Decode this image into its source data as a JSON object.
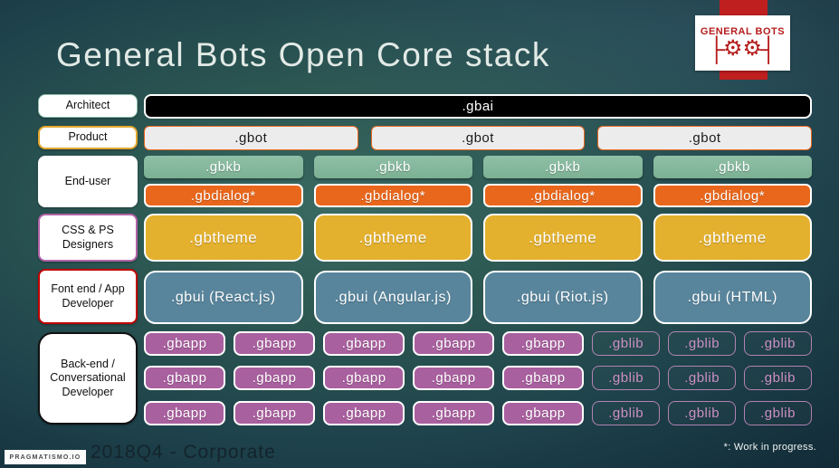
{
  "slide": {
    "title": "General Bots Open Core stack",
    "footnote": "*: Work in progress.",
    "footer": {
      "brand": "PRAGMATISMO.IO",
      "caption": "2018Q4 - Corporate"
    },
    "logo": {
      "text": "GENERAL BOTS",
      "bar_left": "├",
      "gear_left": "⚙",
      "gear_right": "⚙",
      "bar_right": "┤"
    }
  },
  "labels": {
    "architect": "Architect",
    "product": "Product",
    "end_user": "End-user",
    "css_ps": "CSS & PS Designers",
    "front_end": "Font end / App Developer",
    "back_end": "Back-end / Conversational Developer"
  },
  "stack": {
    "gbai_row": [
      ".gbai"
    ],
    "gbot_row": [
      ".gbot",
      ".gbot",
      ".gbot"
    ],
    "gbkb_row": [
      ".gbkb",
      ".gbkb",
      ".gbkb",
      ".gbkb"
    ],
    "gbdialog_row": [
      ".gbdialog*",
      ".gbdialog*",
      ".gbdialog*",
      ".gbdialog*"
    ],
    "gbtheme_row": [
      ".gbtheme",
      ".gbtheme",
      ".gbtheme",
      ".gbtheme"
    ],
    "gbui_row": [
      ".gbui (React.js)",
      ".gbui (Angular.js)",
      ".gbui (Riot.js)",
      ".gbui (HTML)"
    ],
    "backend_rows": [
      {
        "cells": [
          ".gbapp",
          ".gbapp",
          ".gbapp",
          ".gbapp",
          ".gbapp",
          ".gblib",
          ".gblib",
          ".gblib"
        ]
      },
      {
        "cells": [
          ".gbapp",
          ".gbapp",
          ".gbapp",
          ".gbapp",
          ".gbapp",
          ".gblib",
          ".gblib",
          ".gblib"
        ]
      },
      {
        "cells": [
          ".gbapp",
          ".gbapp",
          ".gbapp",
          ".gbapp",
          ".gbapp",
          ".gblib",
          ".gblib",
          ".gblib"
        ]
      }
    ]
  },
  "colors": {
    "background_center": "#3a6a62",
    "background_edge": "#0f2531",
    "gbai_bg": "#000000",
    "gbot_bg": "#ececec",
    "gbot_border": "#e8671c",
    "gbkb_bg": "#85b89c",
    "gbdialog_bg": "#e9671c",
    "gbtheme_bg": "#e4b12e",
    "gbui_bg": "#58859c",
    "gbapp_bg": "#a9609f",
    "gblib_accent": "#cd8fc3",
    "brand_red": "#c01f1f"
  }
}
